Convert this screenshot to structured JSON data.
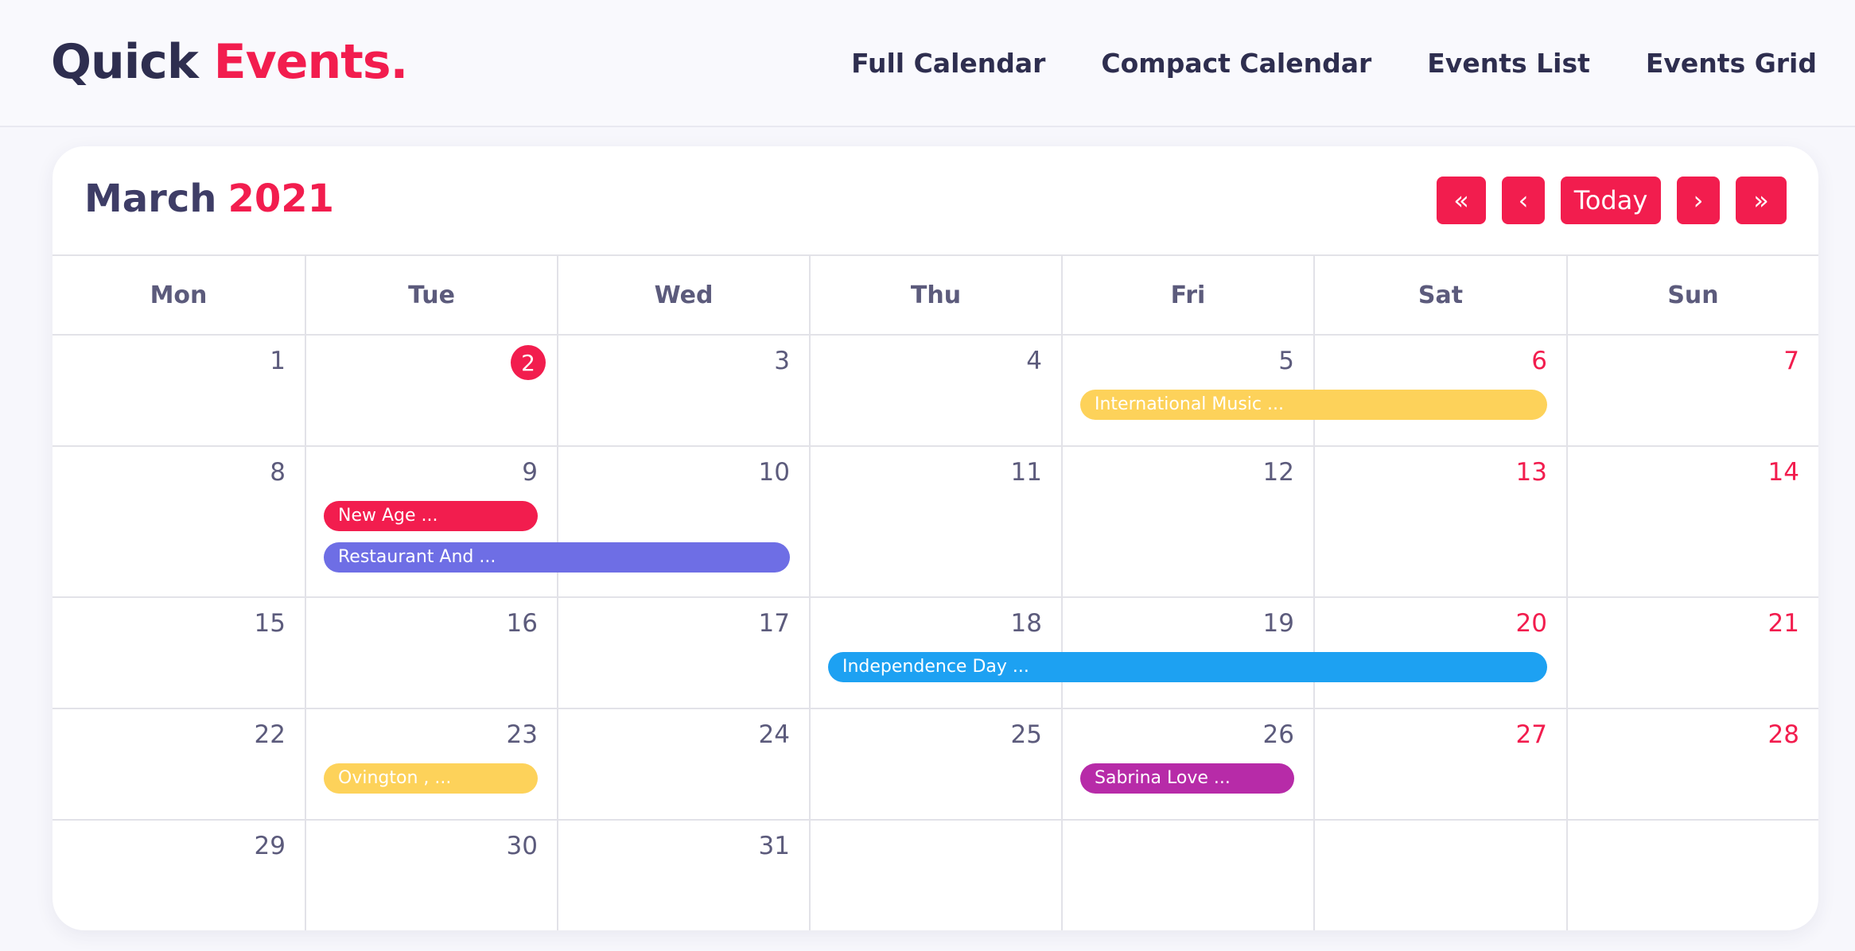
{
  "app": {
    "title_part1": "Quick",
    "title_part2": "Events."
  },
  "nav": [
    "Full Calendar",
    "Compact Calendar",
    "Events List",
    "Events Grid"
  ],
  "calendar": {
    "month": "March",
    "year": "2021",
    "controls": {
      "first": "«",
      "prev": "‹",
      "today": "Today",
      "next": "›",
      "last": "»"
    },
    "weekdays": [
      "Mon",
      "Tue",
      "Wed",
      "Thu",
      "Fri",
      "Sat",
      "Sun"
    ],
    "weeks": [
      [
        "1",
        "2",
        "3",
        "4",
        "5",
        "6",
        "7"
      ],
      [
        "8",
        "9",
        "10",
        "11",
        "12",
        "13",
        "14"
      ],
      [
        "15",
        "16",
        "17",
        "18",
        "19",
        "20",
        "21"
      ],
      [
        "22",
        "23",
        "24",
        "25",
        "26",
        "27",
        "28"
      ],
      [
        "29",
        "30",
        "31",
        "",
        "",
        "",
        ""
      ]
    ],
    "today": "2",
    "weekend_color": "#f21d4e",
    "accent_color": "#f21d4e",
    "events": [
      {
        "label": "International Music ...",
        "week": 0,
        "start_col": 4,
        "end_col": 5,
        "lane": 0,
        "color": "#fdd25a"
      },
      {
        "label": "New Age ...",
        "week": 1,
        "start_col": 1,
        "end_col": 1,
        "lane": 0,
        "color": "#f21d4e"
      },
      {
        "label": "Restaurant And ...",
        "week": 1,
        "start_col": 1,
        "end_col": 2,
        "lane": 1,
        "color": "#6e6ee5"
      },
      {
        "label": "Independence Day ...",
        "week": 2,
        "start_col": 3,
        "end_col": 5,
        "lane": 0,
        "color": "#1da1f2"
      },
      {
        "label": "Ovington , ...",
        "week": 3,
        "start_col": 1,
        "end_col": 1,
        "lane": 0,
        "color": "#fdd25a"
      },
      {
        "label": "Sabrina Love ...",
        "week": 3,
        "start_col": 4,
        "end_col": 4,
        "lane": 0,
        "color": "#b72ba8"
      }
    ]
  }
}
